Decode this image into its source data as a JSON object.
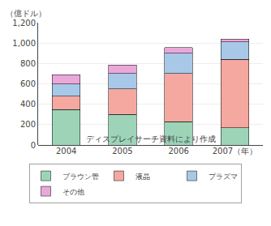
{
  "chart_data": {
    "type": "bar",
    "stacked": true,
    "categories": [
      "2004",
      "2005",
      "2006",
      "2007（年）"
    ],
    "series": [
      {
        "name": "ブラウン管",
        "color": "#9dd4b8",
        "values": [
          350,
          300,
          230,
          170
        ]
      },
      {
        "name": "液晶",
        "color": "#f4a8a0",
        "values": [
          130,
          250,
          470,
          670
        ]
      },
      {
        "name": "プラズマ",
        "color": "#a8c8e8",
        "values": [
          120,
          150,
          200,
          170
        ]
      },
      {
        "name": "その他",
        "color": "#e8a8d8",
        "values": [
          90,
          85,
          55,
          30
        ]
      }
    ],
    "ylabel": "（億ドル）",
    "annotations": [
      "ディスプレイサーチ資料により作成"
    ],
    "ylim": [
      0,
      1200
    ],
    "yticks": [
      0,
      200,
      400,
      600,
      800,
      {
        "value": 1000,
        "label": "1,000"
      },
      {
        "value": 1200,
        "label": "1,200"
      }
    ],
    "grid": true,
    "legend": "bottom"
  }
}
